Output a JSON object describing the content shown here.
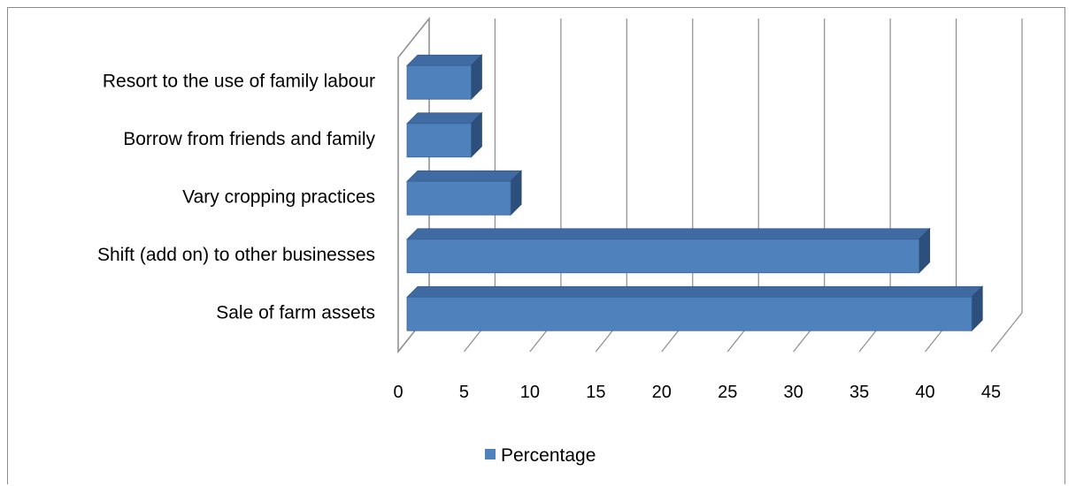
{
  "chart_data": {
    "type": "bar",
    "orientation": "horizontal",
    "style": "3d-clustered-bar",
    "categories": [
      "Sale of  farm assets",
      "Shift (add on) to other businesses",
      "Vary cropping practices",
      "Borrow from friends and family",
      "Resort to the use of  family labour"
    ],
    "series": [
      {
        "name": "Percentage",
        "values": [
          43,
          39,
          8,
          5,
          5
        ],
        "color": "#4f81bd"
      }
    ],
    "xlim": [
      0,
      45
    ],
    "xticks": [
      "0",
      "5",
      "10",
      "15",
      "20",
      "25",
      "30",
      "35",
      "40",
      "45"
    ],
    "grid": "vertical",
    "legend": "bottom"
  },
  "colors": {
    "bar_front": "#4f81bd",
    "bar_top": "#3f6aa2",
    "bar_side": "#2d4f7c",
    "grid": "#8c8c8c",
    "frame": "#8c8c8c"
  }
}
